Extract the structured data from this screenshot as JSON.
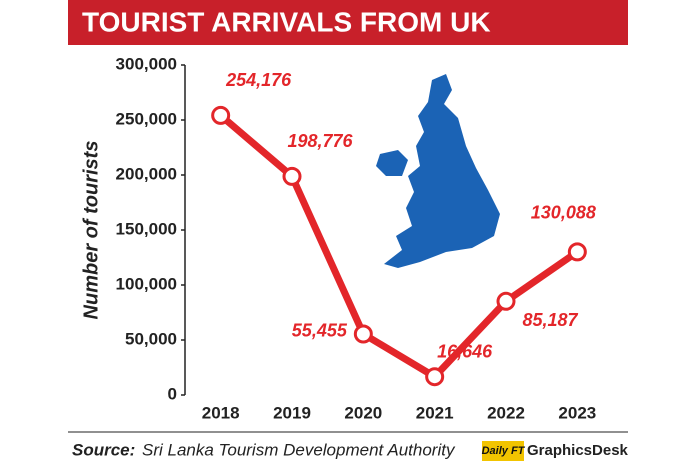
{
  "chart_data": {
    "type": "line",
    "title": "TOURIST ARRIVALS FROM UK",
    "y_label": "Number of tourists",
    "categories": [
      "2018",
      "2019",
      "2020",
      "2021",
      "2022",
      "2023"
    ],
    "values": [
      254176,
      198776,
      55455,
      16646,
      85187,
      130088
    ],
    "value_labels": [
      "254,176",
      "198,776",
      "55,455",
      "16,646",
      "85,187",
      "130,088"
    ],
    "color": "#e3262a",
    "ylim": [
      0,
      300000
    ],
    "yticks": [
      0,
      {
        "value": 50000,
        "label": "50,000"
      },
      {
        "value": 100000,
        "label": "100,000"
      },
      {
        "value": 150000,
        "label": "150,000"
      },
      {
        "value": 200000,
        "label": "200,000"
      },
      {
        "value": 250000,
        "label": "250,000"
      },
      {
        "value": 300000,
        "label": "300,000"
      }
    ],
    "source_label": "Source:",
    "source": "Sri Lanka Tourism Development Authority",
    "logo_brand": "Daily FT",
    "logo_text": "GraphicsDesk"
  }
}
